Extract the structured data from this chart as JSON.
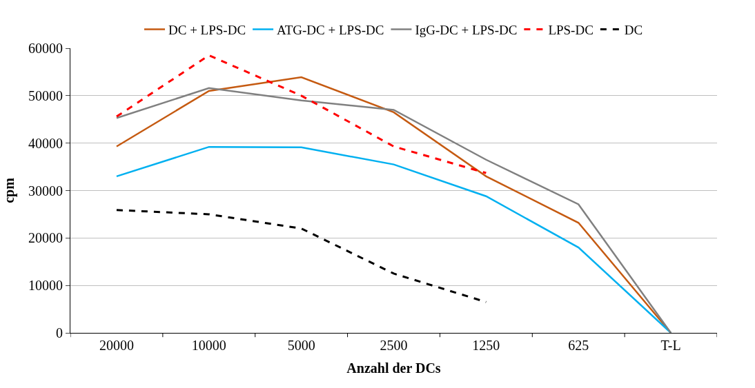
{
  "chart_data": {
    "type": "line",
    "xlabel": "Anzahl der DCs",
    "ylabel": "cpm",
    "categories": [
      "20000",
      "10000",
      "5000",
      "2500",
      "1250",
      "625",
      "T-L"
    ],
    "ylim": [
      0,
      60000
    ],
    "yticks": [
      0,
      10000,
      20000,
      30000,
      40000,
      50000,
      60000
    ],
    "grid": "y",
    "legend": "top",
    "marker": "none",
    "series": [
      {
        "name": "DC + LPS-DC",
        "color": "#c55a11",
        "line_style": "solid",
        "values": [
          39300,
          51000,
          53900,
          46500,
          33000,
          23200,
          0
        ]
      },
      {
        "name": "ATG-DC + LPS-DC",
        "color": "#00b0f0",
        "line_style": "solid",
        "values": [
          33000,
          39200,
          39100,
          35500,
          28800,
          18000,
          0
        ]
      },
      {
        "name": "IgG-DC + LPS-DC",
        "color": "#808080",
        "line_style": "solid",
        "values": [
          45300,
          51600,
          49000,
          47000,
          36500,
          27100,
          0
        ]
      },
      {
        "name": "LPS-DC",
        "color": "#ff0000",
        "line_style": "dashed",
        "values": [
          45600,
          58500,
          50000,
          39300,
          33700,
          null,
          null
        ]
      },
      {
        "name": "DC",
        "color": "#000000",
        "line_style": "dashed",
        "values": [
          25900,
          25000,
          22000,
          12500,
          6500,
          null,
          null
        ]
      }
    ]
  }
}
